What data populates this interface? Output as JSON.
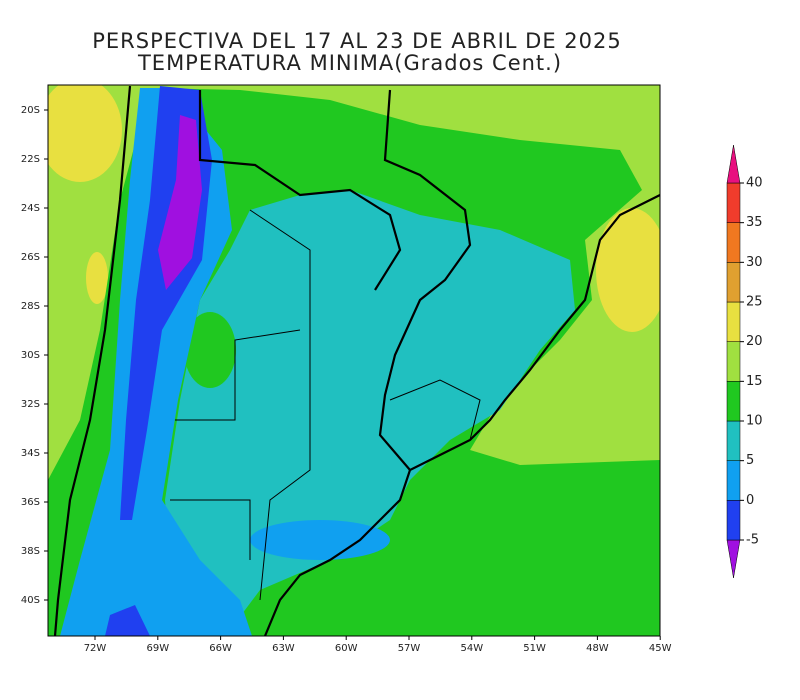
{
  "title": [
    "PERSPECTIVA DEL 17 AL 23 DE ABRIL DE 2025",
    "TEMPERATURA MINIMA(Grados Cent.)"
  ],
  "lat_labels": [
    "20S",
    "22S",
    "24S",
    "26S",
    "28S",
    "30S",
    "32S",
    "34S",
    "36S",
    "38S",
    "40S"
  ],
  "lon_labels": [
    "72W",
    "69W",
    "66W",
    "63W",
    "60W",
    "57W",
    "54W",
    "51W",
    "48W",
    "45W"
  ],
  "colorbar": {
    "levels": [
      -5,
      0,
      5,
      10,
      15,
      20,
      25,
      30,
      35,
      40
    ],
    "colors": [
      "#a010e0",
      "#2040f0",
      "#10a0f0",
      "#20c0c0",
      "#20c820",
      "#a0e040",
      "#e8e040",
      "#e0a030",
      "#f07820",
      "#f03c2c",
      "#e8107f"
    ]
  }
}
